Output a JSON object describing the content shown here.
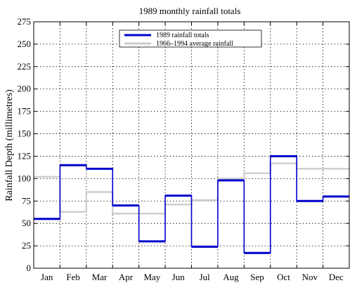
{
  "chart_data": {
    "type": "line",
    "step": "post",
    "title": "1989 monthly rainfall totals",
    "xlabel": "",
    "ylabel": "Rainfall Depth (millimetres)",
    "categories": [
      "Jan",
      "Feb",
      "Mar",
      "Apr",
      "May",
      "Jun",
      "Jul",
      "Aug",
      "Sep",
      "Oct",
      "Nov",
      "Dec"
    ],
    "ylim": [
      0,
      275
    ],
    "yticks": [
      0,
      25,
      50,
      75,
      100,
      125,
      150,
      175,
      200,
      225,
      250,
      275
    ],
    "grid": true,
    "legend_position": "top-center",
    "series": [
      {
        "name": "1989 rainfall totals",
        "color": "#0000cc",
        "values": [
          55,
          115,
          111,
          70,
          30,
          81,
          24,
          98,
          17,
          125,
          75,
          80
        ]
      },
      {
        "name": "1966–1994 average rainfall",
        "color": "#cccccc",
        "values": [
          102,
          63,
          85,
          61,
          61,
          71,
          76,
          100,
          106,
          117,
          111,
          111
        ]
      }
    ]
  }
}
